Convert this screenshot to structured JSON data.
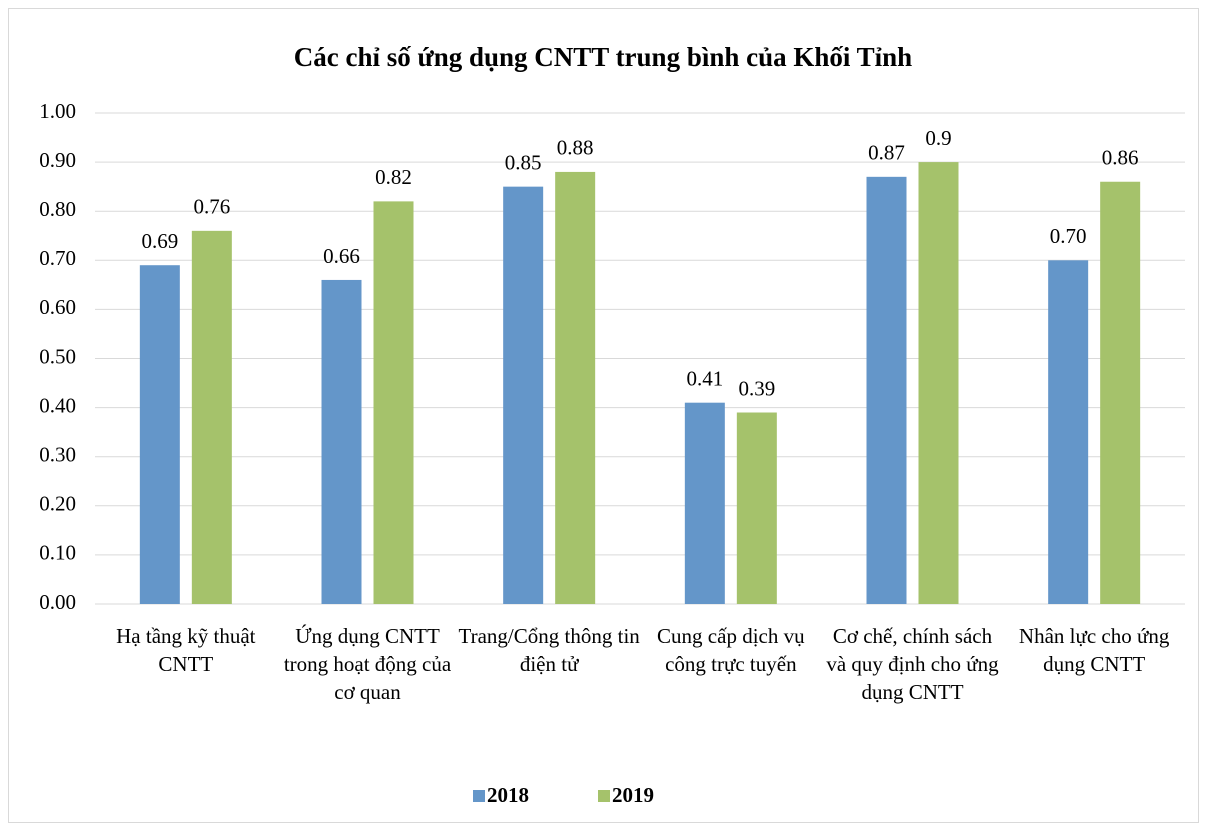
{
  "chart_data": {
    "type": "bar",
    "title": "Các chỉ số ứng dụng CNTT trung bình của Khối Tỉnh",
    "categories": [
      "Hạ tầng kỹ thuật CNTT",
      "Ứng dụng CNTT trong hoạt động của cơ quan",
      "Trang/Cổng thông tin điện tử",
      "Cung cấp dịch vụ công trực tuyến",
      "Cơ chế, chính sách và quy định cho ứng dụng CNTT",
      "Nhân lực cho ứng dụng CNTT"
    ],
    "series": [
      {
        "name": "2018",
        "color": "#6496c9",
        "values": [
          0.69,
          0.66,
          0.85,
          0.41,
          0.87,
          0.7
        ],
        "value_labels": [
          "0.69",
          "0.66",
          "0.85",
          "0.41",
          "0.87",
          "0.70"
        ]
      },
      {
        "name": "2019",
        "color": "#a5c26b",
        "values": [
          0.76,
          0.82,
          0.88,
          0.39,
          0.9,
          0.86
        ],
        "value_labels": [
          "0.76",
          "0.82",
          "0.88",
          "0.39",
          "0.9",
          "0.86"
        ]
      }
    ],
    "ylim": [
      0,
      1
    ],
    "yticks": [
      {
        "value": 0,
        "label": "0.00"
      },
      {
        "value": 0.1,
        "label": "0.10"
      },
      {
        "value": 0.2,
        "label": "0.20"
      },
      {
        "value": 0.3,
        "label": "0.30"
      },
      {
        "value": 0.4,
        "label": "0.40"
      },
      {
        "value": 0.5,
        "label": "0.50"
      },
      {
        "value": 0.6,
        "label": "0.60"
      },
      {
        "value": 0.7,
        "label": "0.70"
      },
      {
        "value": 0.8,
        "label": "0.80"
      },
      {
        "value": 0.9,
        "label": "0.90"
      },
      {
        "value": 1,
        "label": "1.00"
      }
    ],
    "grid": true,
    "legend": "bottom"
  }
}
